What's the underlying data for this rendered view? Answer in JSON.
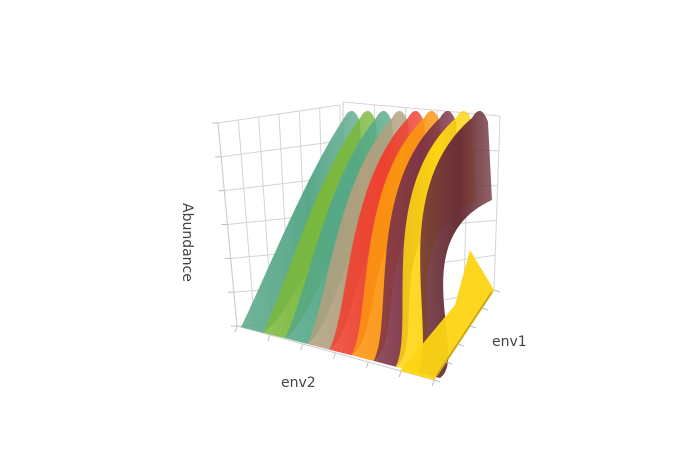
{
  "chart_data": {
    "type": "surface",
    "title": "",
    "axes": {
      "x": {
        "label": "env1"
      },
      "y": {
        "label": "env2"
      },
      "z": {
        "label": "Abundance"
      }
    },
    "grid": true,
    "legend": "none",
    "surfaces": [
      {
        "color": "#5aa88a",
        "peak": 1.0
      },
      {
        "color": "#7ab83c",
        "peak": 1.0
      },
      {
        "color": "#55a888",
        "peak": 1.0
      },
      {
        "color": "#b0a07e",
        "peak": 1.0
      },
      {
        "color": "#ee4130",
        "peak": 1.0
      },
      {
        "color": "#fb9410",
        "peak": 1.0
      },
      {
        "color": "#7e3446",
        "peak": 1.0
      },
      {
        "color": "#fdd513",
        "peak": 1.0
      },
      {
        "color": "#6b3038",
        "peak": 1.0
      }
    ]
  }
}
